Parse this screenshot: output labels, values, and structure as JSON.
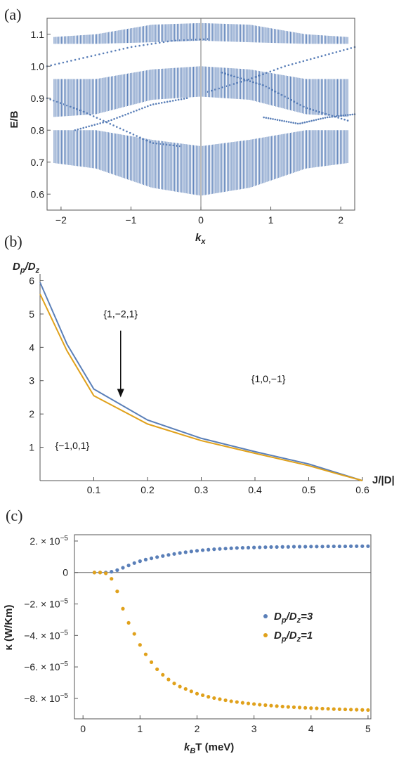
{
  "panels": {
    "a": "(a)",
    "b": "(b)",
    "c": "(c)"
  },
  "colors": {
    "blue": "#5a7fb8",
    "orange": "#e0a11b",
    "axis": "#555555"
  },
  "chart_data": [
    {
      "panel": "(a)",
      "type": "band-structure",
      "xlabel": "k",
      "xlabel_sub": "x",
      "ylabel": "E/B",
      "xlim": [
        -2.2,
        2.2
      ],
      "ylim": [
        0.55,
        1.15
      ],
      "xticks": [
        {
          "v": -2,
          "t": "−2"
        },
        {
          "v": -1,
          "t": "−1"
        },
        {
          "v": 0,
          "t": "0"
        },
        {
          "v": 1,
          "t": "1"
        },
        {
          "v": 2,
          "t": "2"
        }
      ],
      "yticks": [
        {
          "v": 0.6,
          "t": "0.6"
        },
        {
          "v": 0.7,
          "t": "0.7"
        },
        {
          "v": 0.8,
          "t": "0.8"
        },
        {
          "v": 0.9,
          "t": "0.9"
        },
        {
          "v": 1.0,
          "t": "1.0"
        },
        {
          "v": 1.1,
          "t": "1.1"
        }
      ],
      "bands": [
        {
          "k_edge": [
            0,
            0.7,
            1.5,
            2.2
          ],
          "lower": [
            0.595,
            0.62,
            0.68,
            0.7
          ],
          "upper": [
            0.75,
            0.77,
            0.8,
            0.8
          ]
        },
        {
          "k_edge": [
            0,
            0.7,
            1.5,
            2.2
          ],
          "lower": [
            0.905,
            0.895,
            0.85,
            0.84
          ],
          "upper": [
            1.0,
            0.99,
            0.96,
            0.96
          ]
        },
        {
          "k_edge": [
            0,
            0.7,
            1.5,
            2.2
          ],
          "lower": [
            1.08,
            1.075,
            1.07,
            1.07
          ],
          "upper": [
            1.135,
            1.13,
            1.1,
            1.09
          ]
        }
      ],
      "edge_states": [
        {
          "k": [
            -2.2,
            -1.5,
            -1.0,
            -0.4,
            0.1
          ],
          "E": [
            1.0,
            1.035,
            1.06,
            1.08,
            1.085
          ]
        },
        {
          "k": [
            0.1,
            0.7,
            1.2,
            1.7,
            2.2
          ],
          "E": [
            0.92,
            0.96,
            1.0,
            1.03,
            1.06
          ]
        },
        {
          "k": [
            -2.2,
            -1.7,
            -1.2,
            -0.7,
            -0.3
          ],
          "E": [
            0.9,
            0.86,
            0.81,
            0.76,
            0.75
          ]
        },
        {
          "k": [
            -1.8,
            -1.3,
            -0.7,
            -0.2
          ],
          "E": [
            0.8,
            0.83,
            0.88,
            0.9
          ]
        },
        {
          "k": [
            0.3,
            0.9,
            1.5,
            2.1
          ],
          "E": [
            0.98,
            0.94,
            0.87,
            0.83
          ]
        },
        {
          "k": [
            0.9,
            1.4,
            1.8,
            2.2
          ],
          "E": [
            0.84,
            0.82,
            0.84,
            0.85
          ]
        }
      ]
    },
    {
      "panel": "(b)",
      "type": "line",
      "ylabel": "D",
      "ylabel_sub1": "p",
      "ylabel_mid": "/D",
      "ylabel_sub2": "z",
      "xlabel": "J/|D|",
      "xlim": [
        0,
        0.6
      ],
      "ylim": [
        0,
        6.2
      ],
      "xticks": [
        {
          "v": 0.1,
          "t": "0.1"
        },
        {
          "v": 0.2,
          "t": "0.2"
        },
        {
          "v": 0.3,
          "t": "0.3"
        },
        {
          "v": 0.4,
          "t": "0.4"
        },
        {
          "v": 0.5,
          "t": "0.5"
        },
        {
          "v": 0.6,
          "t": "0.6"
        }
      ],
      "yticks": [
        {
          "v": 1,
          "t": "1"
        },
        {
          "v": 2,
          "t": "2"
        },
        {
          "v": 3,
          "t": "3"
        },
        {
          "v": 4,
          "t": "4"
        },
        {
          "v": 5,
          "t": "5"
        },
        {
          "v": 6,
          "t": "6"
        }
      ],
      "series": [
        {
          "color": "#5a7fb8",
          "x": [
            0,
            0.05,
            0.1,
            0.2,
            0.3,
            0.4,
            0.5,
            0.55,
            0.6
          ],
          "y": [
            5.95,
            4.1,
            2.75,
            1.82,
            1.27,
            0.87,
            0.5,
            0.25,
            0.0
          ]
        },
        {
          "color": "#e0a11b",
          "x": [
            0,
            0.05,
            0.1,
            0.2,
            0.3,
            0.4,
            0.5,
            0.55,
            0.6
          ],
          "y": [
            5.6,
            3.9,
            2.55,
            1.7,
            1.2,
            0.82,
            0.45,
            0.22,
            0.0
          ]
        }
      ],
      "annotations": [
        "{1,−2,1}",
        "{1,0,−1}",
        "{−1,0,1}"
      ],
      "annotation_pos": [
        [
          0.15,
          4.9
        ],
        [
          0.425,
          2.95
        ],
        [
          0.06,
          0.95
        ]
      ],
      "arrow": {
        "from": [
          0.15,
          4.5
        ],
        "to": [
          0.15,
          2.5
        ]
      }
    },
    {
      "panel": "(c)",
      "type": "scatter",
      "ylabel": "κ (W/Km)",
      "xlabel": "T (meV)",
      "xlabel_k": "k",
      "xlabel_sub": "B",
      "xlim": [
        -0.15,
        5.05
      ],
      "ylim": [
        -9.3e-05,
        2.4e-05
      ],
      "xticks": [
        {
          "v": 0,
          "t": "0"
        },
        {
          "v": 1,
          "t": "1"
        },
        {
          "v": 2,
          "t": "2"
        },
        {
          "v": 3,
          "t": "3"
        },
        {
          "v": 4,
          "t": "4"
        },
        {
          "v": 5,
          "t": "5"
        }
      ],
      "yticks": [
        {
          "v": 2e-05,
          "m": "2.",
          "e": "−5"
        },
        {
          "v": 0,
          "m": "0",
          "e": ""
        },
        {
          "v": -2e-05,
          "m": "−2.",
          "e": "−5"
        },
        {
          "v": -4e-05,
          "m": "−4.",
          "e": "−5"
        },
        {
          "v": -6e-05,
          "m": "−6.",
          "e": "−5"
        },
        {
          "v": -8e-05,
          "m": "−8.",
          "e": "−5"
        }
      ],
      "series": [
        {
          "name": "D_p/D_z=3",
          "label_main": "D",
          "label_sub1": "p",
          "label_mid": "/D",
          "label_sub2": "z",
          "label_tail": "=3",
          "color": "#5a7fb8",
          "x": [
            0.2,
            0.3,
            0.4,
            0.5,
            0.6,
            0.7,
            0.8,
            0.9,
            1.0,
            1.1,
            1.2,
            1.3,
            1.4,
            1.5,
            1.6,
            1.7,
            1.8,
            1.9,
            2.0,
            2.1,
            2.2,
            2.3,
            2.4,
            2.5,
            2.6,
            2.7,
            2.8,
            2.9,
            3.0,
            3.1,
            3.2,
            3.3,
            3.4,
            3.5,
            3.6,
            3.7,
            3.8,
            3.9,
            4.0,
            4.1,
            4.2,
            4.3,
            4.4,
            4.5,
            4.6,
            4.7,
            4.8,
            4.9,
            5.0
          ],
          "y": [
            0,
            0,
            0,
            5e-07,
            1.5e-06,
            3e-06,
            4.5e-06,
            6e-06,
            7.2e-06,
            8.2e-06,
            9e-06,
            9.8e-06,
            1.05e-05,
            1.12e-05,
            1.18e-05,
            1.24e-05,
            1.29e-05,
            1.34e-05,
            1.38e-05,
            1.42e-05,
            1.45e-05,
            1.48e-05,
            1.5e-05,
            1.52e-05,
            1.54e-05,
            1.56e-05,
            1.57e-05,
            1.58e-05,
            1.59e-05,
            1.6e-05,
            1.61e-05,
            1.62e-05,
            1.62e-05,
            1.63e-05,
            1.63e-05,
            1.64e-05,
            1.64e-05,
            1.64e-05,
            1.65e-05,
            1.65e-05,
            1.65e-05,
            1.66e-05,
            1.66e-05,
            1.66e-05,
            1.66e-05,
            1.67e-05,
            1.67e-05,
            1.67e-05,
            1.67e-05
          ]
        },
        {
          "name": "D_p/D_z=1",
          "label_main": "D",
          "label_sub1": "p",
          "label_mid": "/D",
          "label_sub2": "z",
          "label_tail": "=1",
          "color": "#e0a11b",
          "x": [
            0.2,
            0.3,
            0.4,
            0.5,
            0.6,
            0.7,
            0.8,
            0.9,
            1.0,
            1.1,
            1.2,
            1.3,
            1.4,
            1.5,
            1.6,
            1.7,
            1.8,
            1.9,
            2.0,
            2.1,
            2.2,
            2.3,
            2.4,
            2.5,
            2.6,
            2.7,
            2.8,
            2.9,
            3.0,
            3.1,
            3.2,
            3.3,
            3.4,
            3.5,
            3.6,
            3.7,
            3.8,
            3.9,
            4.0,
            4.1,
            4.2,
            4.3,
            4.4,
            4.5,
            4.6,
            4.7,
            4.8,
            4.9,
            5.0
          ],
          "y": [
            0,
            0,
            -5e-07,
            -4e-06,
            -1.2e-05,
            -2.3e-05,
            -3.2e-05,
            -3.9e-05,
            -4.6e-05,
            -5.2e-05,
            -5.7e-05,
            -6.15e-05,
            -6.5e-05,
            -6.8e-05,
            -7.05e-05,
            -7.25e-05,
            -7.4e-05,
            -7.55e-05,
            -7.7e-05,
            -7.8e-05,
            -7.9e-05,
            -7.98e-05,
            -8.05e-05,
            -8.12e-05,
            -8.18e-05,
            -8.23e-05,
            -8.28e-05,
            -8.32e-05,
            -8.36e-05,
            -8.4e-05,
            -8.43e-05,
            -8.46e-05,
            -8.49e-05,
            -8.52e-05,
            -8.54e-05,
            -8.56e-05,
            -8.58e-05,
            -8.6e-05,
            -8.62e-05,
            -8.63e-05,
            -8.65e-05,
            -8.66e-05,
            -8.68e-05,
            -8.69e-05,
            -8.7e-05,
            -8.71e-05,
            -8.72e-05,
            -8.73e-05,
            -8.74e-05
          ]
        }
      ]
    }
  ]
}
